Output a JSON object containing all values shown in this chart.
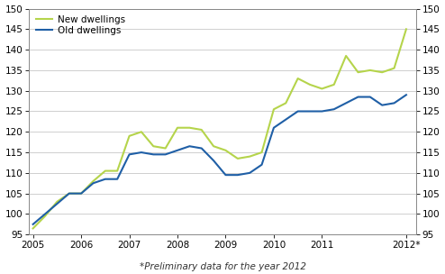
{
  "new_dwellings_x": [
    2005.0,
    2005.25,
    2005.5,
    2005.75,
    2006.0,
    2006.25,
    2006.5,
    2006.75,
    2007.0,
    2007.25,
    2007.5,
    2007.75,
    2008.0,
    2008.25,
    2008.5,
    2008.75,
    2009.0,
    2009.25,
    2009.5,
    2009.75,
    2010.0,
    2010.25,
    2010.5,
    2010.75,
    2011.0,
    2011.25,
    2011.5,
    2011.75,
    2012.0,
    2012.25,
    2012.5,
    2012.75
  ],
  "new_dwellings_y": [
    96.5,
    99.5,
    103.0,
    105.0,
    105.0,
    108.0,
    110.5,
    110.5,
    119.0,
    120.0,
    116.5,
    116.0,
    121.0,
    121.0,
    120.5,
    116.5,
    115.5,
    113.5,
    114.0,
    115.0,
    125.5,
    127.0,
    133.0,
    131.5,
    130.5,
    131.5,
    138.5,
    134.5,
    135.0,
    134.5,
    135.5,
    145.0
  ],
  "old_dwellings_x": [
    2005.0,
    2005.25,
    2005.5,
    2005.75,
    2006.0,
    2006.25,
    2006.5,
    2006.75,
    2007.0,
    2007.25,
    2007.5,
    2007.75,
    2008.0,
    2008.25,
    2008.5,
    2008.75,
    2009.0,
    2009.25,
    2009.5,
    2009.75,
    2010.0,
    2010.25,
    2010.5,
    2010.75,
    2011.0,
    2011.25,
    2011.5,
    2011.75,
    2012.0,
    2012.25,
    2012.5,
    2012.75
  ],
  "old_dwellings_y": [
    97.5,
    100.0,
    102.5,
    105.0,
    105.0,
    107.5,
    108.5,
    108.5,
    114.5,
    115.0,
    114.5,
    114.5,
    115.5,
    116.5,
    116.0,
    113.0,
    109.5,
    109.5,
    110.0,
    112.0,
    121.0,
    123.0,
    125.0,
    125.0,
    125.0,
    125.5,
    127.0,
    128.5,
    128.5,
    126.5,
    127.0,
    129.0
  ],
  "new_color": "#b5d44b",
  "old_color": "#1f5fa6",
  "ylim": [
    95,
    150
  ],
  "yticks": [
    95,
    100,
    105,
    110,
    115,
    120,
    125,
    130,
    135,
    140,
    145,
    150
  ],
  "xlim_left": 2004.92,
  "xlim_right": 2012.95,
  "xtick_labels": [
    "2005",
    "2006",
    "2007",
    "2008",
    "2009",
    "2010",
    "2011",
    "2012*"
  ],
  "xtick_positions": [
    2005,
    2006,
    2007,
    2008,
    2009,
    2010,
    2011,
    2012.75
  ],
  "legend_new": "New dwellings",
  "legend_old": "Old dwellings",
  "footnote": "*Preliminary data for the year 2012",
  "bg_color": "#ffffff",
  "grid_color": "#c8c8c8",
  "linewidth": 1.5,
  "tick_fontsize": 7.5,
  "legend_fontsize": 7.5
}
